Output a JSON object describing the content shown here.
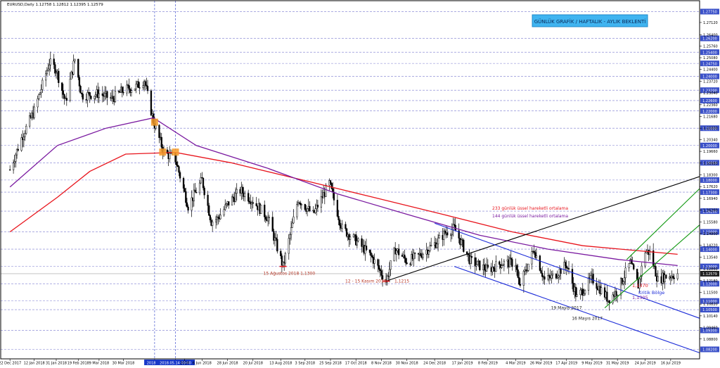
{
  "header": {
    "symbol_info": "EURUSD,Daily  1.12758 1.12812 1.12395 1.12579"
  },
  "banner": {
    "text": "GÜNLÜK GRAFİK / HAFTALIK - AYLIK BEKLENTİ"
  },
  "colors": {
    "background": "#ffffff",
    "grid": "#7b7bd0",
    "candle_body": "#000000",
    "ema233": "#e8141c",
    "ema144": "#7a1aa0",
    "channel_blue": "#1a2ad8",
    "channel_green": "#139a13",
    "trendline_black": "#000000",
    "price_tag_bg": "#3a50c8",
    "current_price_bg": "#202020",
    "banner_bg": "#40b4f0",
    "banner_text": "#0a2a5a",
    "annotation_red": "#b83a2a",
    "annotation_dark": "#202020",
    "highlight_orange": "#f59a28",
    "date_highlight_bg": "#1838c8"
  },
  "chart_data": {
    "type": "candlestick",
    "symbol": "EURUSD",
    "timeframe": "Daily",
    "ohlc_last": {
      "open": 1.12758,
      "high": 1.12812,
      "low": 1.12395,
      "close": 1.12579
    },
    "current_price": "1.12579",
    "y_axis": {
      "range": [
        1.0765,
        1.2838
      ],
      "tick_labels": [
        "1.27120",
        "1.26400",
        "1.25760",
        "1.25080",
        "1.24400",
        "1.23720",
        "1.23040",
        "1.22360",
        "1.21680",
        "1.21000",
        "1.20340",
        "1.19660",
        "1.18980",
        "1.18300",
        "1.17620",
        "1.16940",
        "1.16260",
        "1.15580",
        "1.14900",
        "1.14220",
        "1.13540",
        "1.12860",
        "1.12180",
        "1.11500",
        "1.10820",
        "1.10140",
        "1.09460",
        "1.08800"
      ],
      "grid_levels": [
        "1.27750",
        "1.26200",
        "1.25400",
        "1.24750",
        "1.24000",
        "1.23200",
        "1.22600",
        "1.22000",
        "1.21000",
        "1.20000",
        "1.19000",
        "1.18000",
        "1.17300",
        "1.16200",
        "1.15000",
        "1.14000",
        "1.13000",
        "1.12000",
        "1.11000",
        "1.10500",
        "1.09300",
        "1.08200"
      ]
    },
    "x_axis": {
      "tick_labels": [
        "22 Dec 2017",
        "12 Jan 2018",
        "31 Jan 2018",
        "19 Feb 2018",
        "9 Mar 2018",
        "30 Mar 2018",
        "2018.04.",
        "2018.05.14 00:00",
        "2018",
        "6 Jun 2018",
        "28 Jun 2018",
        "20 Jul 2018",
        "13 Aug 2018",
        "3 Sep 2018",
        "25 Sep 2018",
        "17 Oct 2018",
        "8 Nov 2018",
        "30 Nov 2018",
        "24 Dec 2018",
        "17 Jan 2019",
        "8 Feb 2019",
        "4 Mar 2019",
        "26 Mar 2019",
        "17 Apr 2019",
        "9 May 2019",
        "31 May 2019",
        "24 Jun 2019",
        "16 Jul 2019"
      ],
      "highlighted_dates": [
        "2018.04.",
        "2018.05.14 00:00"
      ]
    },
    "price_path": [
      [
        "2017-12-22",
        1.186
      ],
      [
        "2018-01-02",
        1.206
      ],
      [
        "2018-01-12",
        1.22
      ],
      [
        "2018-01-25",
        1.248
      ],
      [
        "2018-01-31",
        1.244
      ],
      [
        "2018-02-08",
        1.225
      ],
      [
        "2018-02-16",
        1.25
      ],
      [
        "2018-02-22",
        1.229
      ],
      [
        "2018-03-09",
        1.23
      ],
      [
        "2018-03-20",
        1.227
      ],
      [
        "2018-03-30",
        1.232
      ],
      [
        "2018-04-10",
        1.234
      ],
      [
        "2018-04-17",
        1.238
      ],
      [
        "2018-04-25",
        1.214
      ],
      [
        "2018-05-04",
        1.196
      ],
      [
        "2018-05-14",
        1.192
      ],
      [
        "2018-05-25",
        1.165
      ],
      [
        "2018-06-06",
        1.18
      ],
      [
        "2018-06-14",
        1.156
      ],
      [
        "2018-06-20",
        1.158
      ],
      [
        "2018-06-28",
        1.166
      ],
      [
        "2018-07-09",
        1.174
      ],
      [
        "2018-07-20",
        1.168
      ],
      [
        "2018-08-02",
        1.158
      ],
      [
        "2018-08-15",
        1.13
      ],
      [
        "2018-08-28",
        1.169
      ],
      [
        "2018-09-10",
        1.16
      ],
      [
        "2018-09-24",
        1.178
      ],
      [
        "2018-10-05",
        1.152
      ],
      [
        "2018-10-17",
        1.145
      ],
      [
        "2018-10-31",
        1.135
      ],
      [
        "2018-11-12",
        1.1215
      ],
      [
        "2018-11-20",
        1.14
      ],
      [
        "2018-11-30",
        1.133
      ],
      [
        "2018-12-10",
        1.136
      ],
      [
        "2018-12-24",
        1.143
      ],
      [
        "2019-01-03",
        1.15
      ],
      [
        "2019-01-10",
        1.152
      ],
      [
        "2019-01-24",
        1.133
      ],
      [
        "2019-02-08",
        1.128
      ],
      [
        "2019-02-20",
        1.132
      ],
      [
        "2019-03-04",
        1.132
      ],
      [
        "2019-03-07",
        1.118
      ],
      [
        "2019-03-20",
        1.14
      ],
      [
        "2019-03-29",
        1.122
      ],
      [
        "2019-04-05",
        1.124
      ],
      [
        "2019-04-17",
        1.131
      ],
      [
        "2019-04-26",
        1.112
      ],
      [
        "2019-05-09",
        1.123
      ],
      [
        "2019-05-23",
        1.111
      ],
      [
        "2019-05-31",
        1.116
      ],
      [
        "2019-06-11",
        1.132
      ],
      [
        "2019-06-18",
        1.119
      ],
      [
        "2019-06-24",
        1.139
      ],
      [
        "2019-06-28",
        1.138
      ],
      [
        "2019-07-05",
        1.122
      ],
      [
        "2019-07-10",
        1.124
      ],
      [
        "2019-07-18",
        1.125
      ],
      [
        "2019-07-22",
        1.1258
      ]
    ],
    "ema_233": [
      [
        "2017-12-22",
        1.15
      ],
      [
        "2018-02-01",
        1.17
      ],
      [
        "2018-03-01",
        1.185
      ],
      [
        "2018-04-01",
        1.195
      ],
      [
        "2018-05-14",
        1.196
      ],
      [
        "2018-07-01",
        1.19
      ],
      [
        "2018-09-01",
        1.18
      ],
      [
        "2018-11-01",
        1.17
      ],
      [
        "2019-01-01",
        1.16
      ],
      [
        "2019-03-01",
        1.15
      ],
      [
        "2019-05-01",
        1.142
      ],
      [
        "2019-07-22",
        1.137
      ]
    ],
    "ema_144": [
      [
        "2017-12-22",
        1.176
      ],
      [
        "2018-02-01",
        1.2
      ],
      [
        "2018-03-15",
        1.21
      ],
      [
        "2018-04-25",
        1.216
      ],
      [
        "2018-06-01",
        1.2
      ],
      [
        "2018-08-01",
        1.187
      ],
      [
        "2018-10-01",
        1.172
      ],
      [
        "2018-12-01",
        1.16
      ],
      [
        "2019-02-01",
        1.148
      ],
      [
        "2019-04-01",
        1.14
      ],
      [
        "2019-06-01",
        1.134
      ],
      [
        "2019-07-22",
        1.1305
      ]
    ],
    "annotations": [
      {
        "text": "15 Ağustos 2018   1,1300",
        "date": "2018-08-15",
        "price": 1.13
      },
      {
        "text": "12 - 15 Kasım 2018",
        "date": "2018-11-12",
        "price": 1.1215
      },
      {
        "text": "1,1215",
        "date": "2018-11-12",
        "price": 1.1215
      },
      {
        "text": "19 Mayıs 2017",
        "date": "2019-05-10",
        "price": 1.106
      },
      {
        "text": "16 Mayıs 2017",
        "date": "2019-05-28",
        "price": 1.1
      },
      {
        "text": "233 günlük üssel hareketli ortalama",
        "date": "2019-04-20",
        "price": 1.162
      },
      {
        "text": "144 günlük üssel hareketli ortalama",
        "date": "2019-04-20",
        "price": 1.159
      },
      {
        "text": "1,1370",
        "date": "2019-07-22",
        "price": 1.137
      },
      {
        "text": "1,1305",
        "date": "2019-07-22",
        "price": 1.1305
      },
      {
        "text": "Kritik Bölge",
        "date": "2019-07-26",
        "price": 1.134
      }
    ],
    "trendlines": {
      "black_support": [
        [
          "2018-11-12",
          1.1215
        ],
        [
          "2019-08-10",
          1.182
        ]
      ],
      "blue_channel_upper": [
        [
          "2018-12-24",
          1.155
        ],
        [
          "2019-08-10",
          1.1
        ]
      ],
      "blue_channel_lower": [
        [
          "2019-01-10",
          1.13
        ],
        [
          "2019-08-10",
          1.08
        ]
      ],
      "green_channel_upper": [
        [
          "2019-06-08",
          1.134
        ],
        [
          "2019-08-10",
          1.175
        ]
      ],
      "green_channel_lower": [
        [
          "2019-05-20",
          1.106
        ],
        [
          "2019-08-10",
          1.154
        ]
      ]
    },
    "grid": true,
    "legend": "none"
  }
}
